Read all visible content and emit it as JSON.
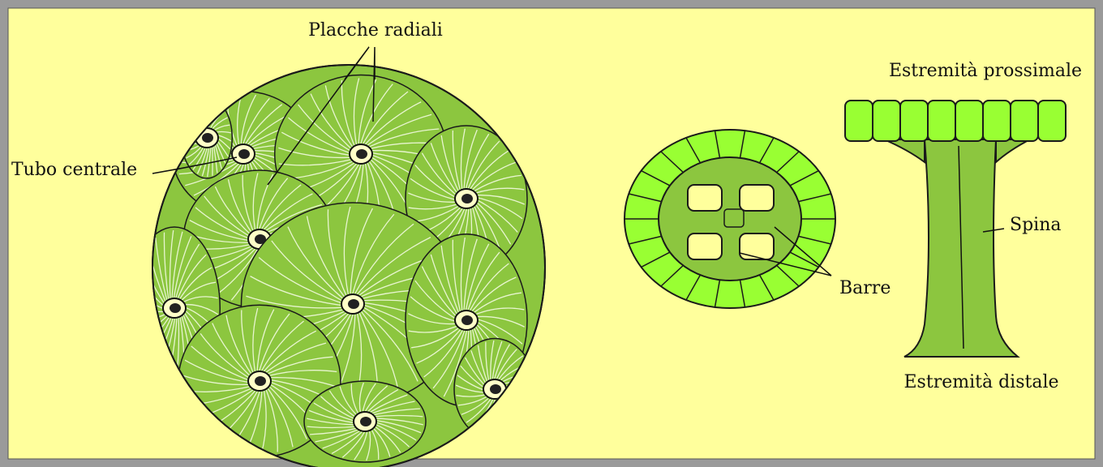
{
  "labels": {
    "radial_plates": "Placche radiali",
    "central_tube": "Tubo centrale",
    "proximal_end": "Estremità prossimale",
    "spine": "Spina",
    "bars": "Barre",
    "distal_end": "Estremità distale"
  }
}
